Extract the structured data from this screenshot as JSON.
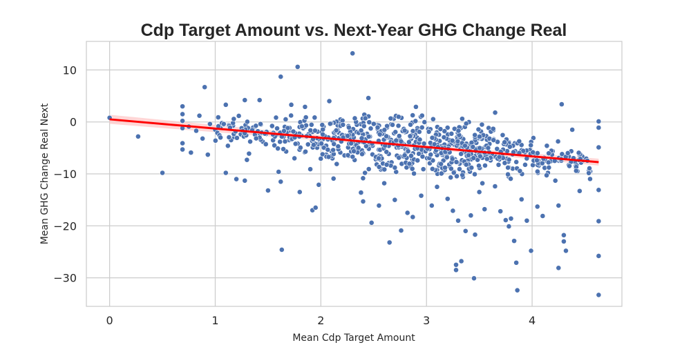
{
  "chart_data": {
    "type": "scatter",
    "title": "Cdp Target Amount vs. Next-Year GHG Change Real",
    "xlabel": "Mean Cdp Target Amount",
    "ylabel": "Mean GHG Change Real Next",
    "xlim": [
      -0.22,
      4.85
    ],
    "ylim": [
      -35.5,
      15.5
    ],
    "x_ticks": [
      0,
      1,
      2,
      3,
      4
    ],
    "y_ticks": [
      10,
      0,
      -10,
      -20,
      -30
    ],
    "x_tick_labels": [
      "0",
      "1",
      "2",
      "3",
      "4"
    ],
    "y_tick_labels": [
      "10",
      "0",
      "−10",
      "−20",
      "−30"
    ],
    "grid": true,
    "colors": {
      "points": "#4c72b0",
      "regression": "#ff0000",
      "band": "#ffcccc",
      "grid": "#cccccc",
      "spine": "#cccccc"
    },
    "regression": {
      "intercept": 0.5,
      "slope": -1.78,
      "x_range": [
        0.0,
        4.63
      ]
    },
    "series": [
      {
        "points": [
          [
            0.0,
            0.8
          ],
          [
            0.27,
            -2.8
          ],
          [
            0.5,
            -9.8
          ],
          [
            0.69,
            3.0
          ],
          [
            0.69,
            1.5
          ],
          [
            0.69,
            0.2
          ],
          [
            0.69,
            -1.2
          ],
          [
            0.69,
            -4.1
          ],
          [
            0.69,
            -5.3
          ],
          [
            0.75,
            -0.9
          ],
          [
            0.77,
            -5.9
          ],
          [
            0.82,
            -1.7
          ],
          [
            0.85,
            1.2
          ],
          [
            0.88,
            -3.2
          ],
          [
            0.9,
            6.7
          ],
          [
            0.93,
            -6.3
          ],
          [
            0.95,
            -0.4
          ],
          [
            1.0,
            -1.5
          ],
          [
            1.02,
            -2.1
          ],
          [
            1.05,
            -1.0
          ],
          [
            1.08,
            -0.5
          ],
          [
            1.1,
            3.3
          ],
          [
            1.1,
            -9.8
          ],
          [
            1.12,
            -4.6
          ],
          [
            1.15,
            -3.5
          ],
          [
            1.18,
            -2.9
          ],
          [
            1.2,
            -11.0
          ],
          [
            1.25,
            -1.2
          ],
          [
            1.28,
            -11.3
          ],
          [
            1.28,
            4.2
          ],
          [
            1.3,
            -7.3
          ],
          [
            1.32,
            -6.1
          ],
          [
            1.38,
            -2.6
          ],
          [
            1.42,
            4.2
          ],
          [
            1.45,
            -3.8
          ],
          [
            1.5,
            -13.2
          ],
          [
            1.55,
            -2.1
          ],
          [
            1.6,
            -9.6
          ],
          [
            1.62,
            -11.5
          ],
          [
            1.62,
            8.7
          ],
          [
            1.63,
            -24.6
          ],
          [
            1.7,
            -3.5
          ],
          [
            1.72,
            3.3
          ],
          [
            1.75,
            -7.0
          ],
          [
            1.78,
            10.6
          ],
          [
            1.8,
            -13.5
          ],
          [
            1.85,
            2.9
          ],
          [
            1.9,
            -9.1
          ],
          [
            1.92,
            -17.0
          ],
          [
            1.95,
            -16.5
          ],
          [
            1.98,
            -12.1
          ],
          [
            2.05,
            -6.3
          ],
          [
            2.08,
            4.0
          ],
          [
            2.12,
            -10.9
          ],
          [
            2.15,
            -8.1
          ],
          [
            2.22,
            -6.4
          ],
          [
            2.3,
            13.2
          ],
          [
            2.3,
            -4.1
          ],
          [
            2.38,
            -13.6
          ],
          [
            2.4,
            -15.3
          ],
          [
            2.45,
            4.6
          ],
          [
            2.48,
            -19.4
          ],
          [
            2.52,
            -7.2
          ],
          [
            2.55,
            -16.1
          ],
          [
            2.6,
            -11.8
          ],
          [
            2.65,
            -23.2
          ],
          [
            2.7,
            -15.0
          ],
          [
            2.76,
            -20.9
          ],
          [
            2.82,
            -17.5
          ],
          [
            2.87,
            -18.3
          ],
          [
            2.9,
            2.9
          ],
          [
            2.95,
            -14.2
          ],
          [
            3.05,
            -16.1
          ],
          [
            3.1,
            -12.5
          ],
          [
            3.15,
            -9.8
          ],
          [
            3.2,
            -14.8
          ],
          [
            3.25,
            -17.1
          ],
          [
            3.28,
            -27.5
          ],
          [
            3.28,
            -28.5
          ],
          [
            3.3,
            -19.0
          ],
          [
            3.33,
            -26.8
          ],
          [
            3.37,
            -21.0
          ],
          [
            3.42,
            -18.0
          ],
          [
            3.45,
            -30.1
          ],
          [
            3.46,
            -21.7
          ],
          [
            3.5,
            -13.5
          ],
          [
            3.55,
            -16.8
          ],
          [
            3.6,
            -1.3
          ],
          [
            3.65,
            1.8
          ],
          [
            3.7,
            -17.2
          ],
          [
            3.75,
            -18.9
          ],
          [
            3.78,
            -20.1
          ],
          [
            3.8,
            -18.6
          ],
          [
            3.83,
            -22.9
          ],
          [
            3.85,
            -27.1
          ],
          [
            3.86,
            -32.4
          ],
          [
            3.9,
            -14.9
          ],
          [
            3.95,
            -19.0
          ],
          [
            3.99,
            -24.8
          ],
          [
            4.05,
            -16.3
          ],
          [
            4.1,
            -18.1
          ],
          [
            4.15,
            -9.8
          ],
          [
            4.22,
            -11.3
          ],
          [
            4.25,
            -16.1
          ],
          [
            4.25,
            -28.1
          ],
          [
            4.28,
            3.4
          ],
          [
            4.3,
            -21.8
          ],
          [
            4.3,
            -23.0
          ],
          [
            4.32,
            -24.8
          ],
          [
            4.38,
            -1.5
          ],
          [
            4.45,
            -13.3
          ],
          [
            4.55,
            -9.5
          ],
          [
            4.63,
            -13.1
          ],
          [
            4.63,
            -19.1
          ],
          [
            4.63,
            -25.8
          ],
          [
            4.63,
            -33.3
          ],
          [
            4.63,
            -1.1
          ],
          [
            4.63,
            -4.9
          ],
          [
            4.63,
            0.1
          ]
        ]
      }
    ]
  }
}
